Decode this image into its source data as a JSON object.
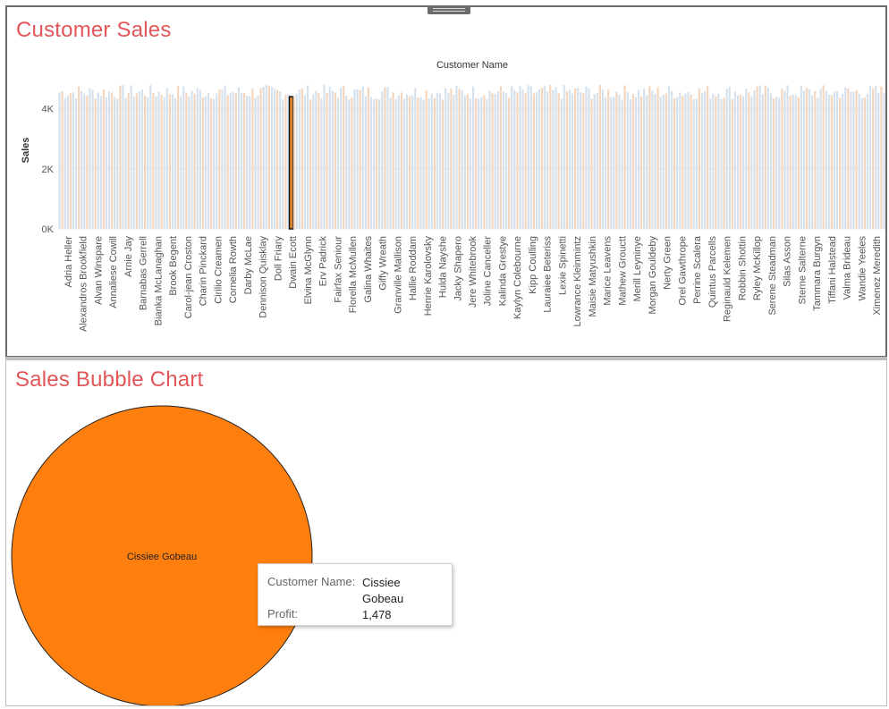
{
  "top": {
    "title": "Customer Sales"
  },
  "bottom": {
    "title": "Sales Bubble Chart"
  },
  "tooltip": {
    "customer_label": "Customer Name:",
    "customer_value": "Cissiee Gobeau",
    "profit_label": "Profit:",
    "profit_value": "1,478"
  },
  "colors": {
    "title": "#e15759",
    "bar_blue": "#c7d7e6",
    "bar_orange": "#f2c8a6",
    "highlight": "#f28e2b",
    "bubble": "#ff7f0e"
  },
  "chart_data": [
    {
      "type": "bar",
      "title": "Customer Sales",
      "xlabel": "Customer Name",
      "ylabel": "Sales",
      "ylim": [
        0,
        5000
      ],
      "yticks": [
        "0K",
        "2K",
        "4K"
      ],
      "ytick_values": [
        0,
        2000,
        4000
      ],
      "bar_count": 300,
      "highlight_index": 84,
      "highlight_value": 4400,
      "categories": [
        "Adria Heller",
        "Alexandros Brookfield",
        "Alvan Winspare",
        "Annaliese Cowill",
        "Arnie Jay",
        "Barnabas Gerrell",
        "Bianka McLanaghan",
        "Brook Begent",
        "Carol-jean Croston",
        "Charin Pinckard",
        "Cirilio Creamen",
        "Cornelia Rowth",
        "Darby McLae",
        "Dennison Quisklay",
        "Doll Friary",
        "Dwain Ecott",
        "Elvina McGlynn",
        "Erv Padrick",
        "Fairfax Seniour",
        "Florella McMullen",
        "Galina Whaites",
        "Giffy Wreath",
        "Granville Mallison",
        "Hallie Roddam",
        "Henrie Karolovsky",
        "Hulda Nayshe",
        "Jacky Shapero",
        "Jere Whitebrook",
        "Joline Canceller",
        "Kalinda Grestye",
        "Kaylyn Colebourne",
        "Kipp Coulling",
        "Lauraiee Beteriss",
        "Lexie Spinetti",
        "Lowrance Kleinmintz",
        "Maisie Matyushkin",
        "Marice Leavens",
        "Mathew Grouctt",
        "Merill Leyninye",
        "Morgan Gouldeby",
        "Nerty Green",
        "Orel Gawthrope",
        "Perrine Scalera",
        "Quintus Parcells",
        "Reginauld Kelemen",
        "Robbin Shottin",
        "Ryley McKillop",
        "Serene Steadman",
        "Silas Asson",
        "Sterne Salterne",
        "Tammara Burgyn",
        "Tiffani Halstead",
        "Valma Brideau",
        "Wandie Yeeles",
        "Ximenez Meredith"
      ]
    },
    {
      "type": "scatter",
      "title": "Sales Bubble Chart",
      "points": [
        {
          "label": "Cissiee Gobeau",
          "profit": 1478
        }
      ]
    }
  ]
}
